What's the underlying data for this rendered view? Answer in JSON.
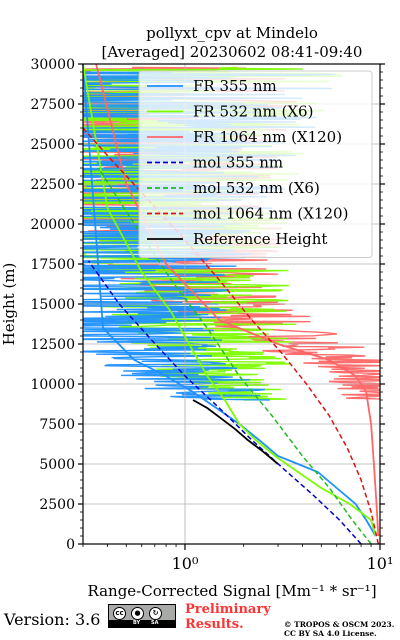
{
  "chart_data": {
    "type": "line",
    "title": "pollyxt_cpv at Mindelo",
    "subtitle": "[Averaged] 20230602 08:41-09:40",
    "xlabel": "Range-Corrected Signal [Mm⁻¹ * sr⁻¹]",
    "ylabel": "Height (m)",
    "xscale": "log",
    "xlim": [
      0.3,
      10
    ],
    "ylim": [
      0,
      30000
    ],
    "xticks": [
      {
        "value": 1,
        "label": "10⁰"
      },
      {
        "value": 10,
        "label": "10¹"
      }
    ],
    "yticks": [
      0,
      2500,
      5000,
      7500,
      10000,
      12500,
      15000,
      17500,
      20000,
      22500,
      25000,
      27500,
      30000
    ],
    "ytick_labels": [
      "0",
      "2500",
      "5000",
      "7500",
      "10000",
      "12500",
      "15000",
      "17500",
      "20000",
      "22500",
      "25000",
      "27500",
      "30000"
    ],
    "grid": true,
    "legend_position": "top-right",
    "series": [
      {
        "name": "FR 355 nm",
        "color": "#1e90ff",
        "style": "solid",
        "x": [
          9.5,
          8.5,
          7.5,
          6.0,
          4.8,
          3.8,
          3.0,
          2.4,
          1.9,
          1.45,
          1.1,
          0.8,
          0.55,
          0.38,
          0.3
        ],
        "y": [
          500,
          1500,
          2500,
          3500,
          4500,
          5000,
          5500,
          6500,
          7500,
          8500,
          9500,
          10500,
          11500,
          13500,
          30000
        ]
      },
      {
        "name": "FR 532 nm (X6)",
        "color": "#7cfc00",
        "style": "solid",
        "x": [
          9.5,
          9.0,
          7.0,
          5.0,
          3.8,
          2.9,
          2.3,
          1.9,
          1.6,
          1.3,
          1.05,
          0.85,
          0.6,
          0.4,
          0.3
        ],
        "y": [
          500,
          1500,
          2500,
          3500,
          4500,
          5500,
          6500,
          7500,
          9000,
          10500,
          12500,
          14500,
          17000,
          21000,
          30000
        ]
      },
      {
        "name": "FR 1064 nm (X120)",
        "color": "#ff6666",
        "style": "solid",
        "x": [
          9.8,
          9.6,
          9.3,
          9.0,
          8.5,
          7.5,
          5.5,
          3.0,
          1.5,
          0.8,
          0.5,
          0.35
        ],
        "y": [
          500,
          2500,
          5000,
          7500,
          9500,
          10500,
          11500,
          12500,
          14000,
          17500,
          22500,
          30000
        ]
      },
      {
        "name": "mol 355 nm",
        "color": "#0000cd",
        "style": "dashed",
        "x": [
          8.0,
          6.2,
          4.6,
          3.2,
          2.2,
          1.5,
          1.0,
          0.68,
          0.46,
          0.32
        ],
        "y": [
          0,
          1500,
          3000,
          4700,
          6500,
          8500,
          10500,
          12700,
          15000,
          17700
        ]
      },
      {
        "name": "mol 532 nm (X6)",
        "color": "#22bb22",
        "style": "dashed",
        "x": [
          9.0,
          7.2,
          5.5,
          4.0,
          2.8,
          1.9,
          1.3,
          0.85,
          0.55,
          0.36
        ],
        "y": [
          0,
          1500,
          3500,
          5500,
          8000,
          10500,
          13500,
          16500,
          20000,
          23500
        ]
      },
      {
        "name": "mol 1064 nm (X120)",
        "color": "#dd1111",
        "style": "dashed",
        "x": [
          9.8,
          9.0,
          8.0,
          6.8,
          5.5,
          4.2,
          3.1,
          2.2,
          1.5,
          1.0,
          0.65,
          0.42,
          0.3
        ],
        "y": [
          0,
          2000,
          4000,
          6000,
          8000,
          10000,
          12000,
          14000,
          16500,
          19000,
          21500,
          24000,
          26000
        ]
      },
      {
        "name": "Reference Height",
        "color": "#000000",
        "style": "solid",
        "x": [
          3.0,
          2.5,
          2.1,
          1.8,
          1.55,
          1.3,
          1.1
        ],
        "y": [
          5000,
          5800,
          6500,
          7200,
          7800,
          8500,
          9000
        ]
      }
    ]
  },
  "footer": {
    "version": "Version: 3.6",
    "preliminary": [
      "Preliminary",
      "Results."
    ],
    "copyright": [
      "© TROPOS & OSCM 2023.",
      "CC BY SA 4.0 License."
    ],
    "badge": {
      "cc": "cc",
      "by": "BY",
      "sa": "SA"
    }
  }
}
